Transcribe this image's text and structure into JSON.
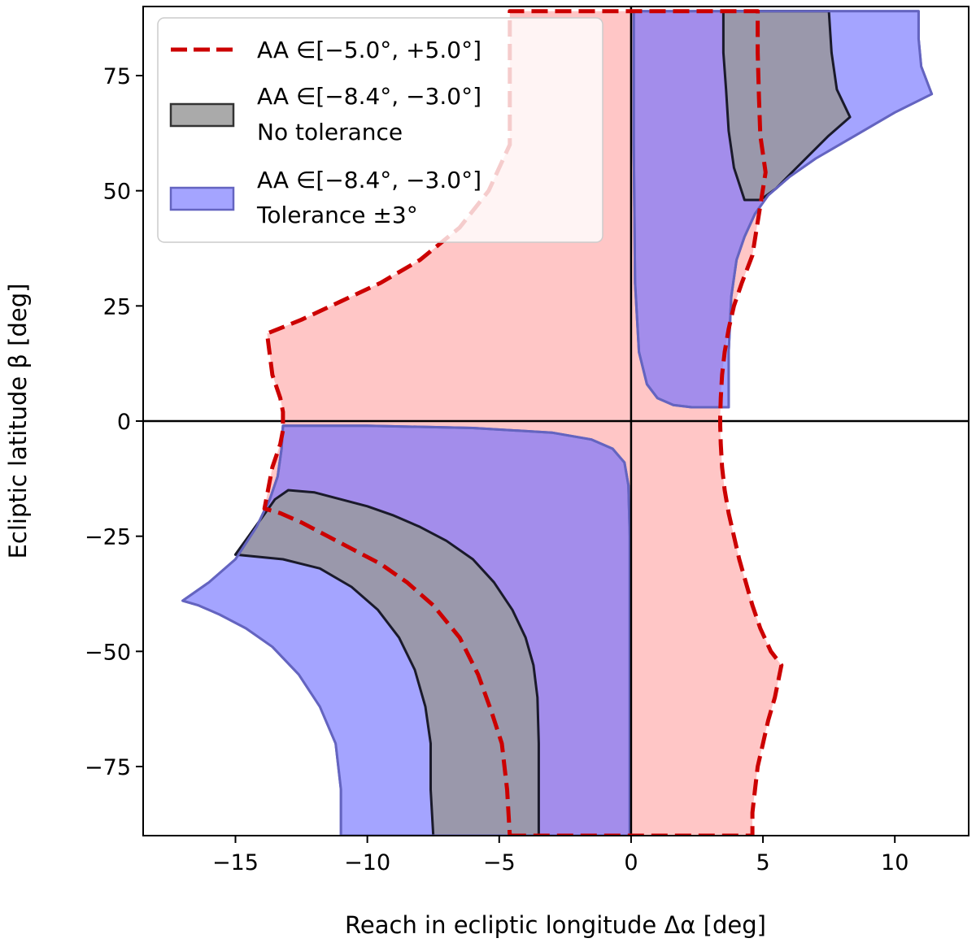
{
  "chart_data": {
    "type": "area",
    "title": "",
    "xlabel": "Reach in ecliptic longitude  Δα [deg]",
    "ylabel": "Ecliptic latitude  β [deg]",
    "xlim": [
      -18.5,
      12.8
    ],
    "ylim": [
      -90,
      90
    ],
    "x_ticks": [
      -15,
      -10,
      -5,
      0,
      5,
      10
    ],
    "y_ticks": [
      -75,
      -50,
      -25,
      0,
      25,
      50,
      75
    ],
    "x_tick_labels": [
      "−15",
      "−10",
      "−5",
      "0",
      "5",
      "10"
    ],
    "y_tick_labels": [
      "−75",
      "−50",
      "−25",
      "0",
      "25",
      "50",
      "75"
    ],
    "grid": false,
    "reference_lines": {
      "x": 0,
      "y": 0
    },
    "legend_position": "top-left",
    "colors": {
      "red_dashed": "#cc0000",
      "red_fill": "#ffc6c6",
      "gray_fill": "#9a98ab",
      "gray_edge": "#1a1a2a",
      "blue_fill": "#a4a4ff",
      "blue_edge": "#6464c0",
      "purple_overlap": "#a38deb"
    },
    "legend": [
      {
        "label": "AA ∈[−5.0°, +5.0°]",
        "style": "dashed-red"
      },
      {
        "label": "AA ∈[−8.4°, −3.0°]",
        "label2": "No tolerance",
        "style": "gray-fill"
      },
      {
        "label": "AA ∈[−8.4°, −3.0°]",
        "label2": "Tolerance ±3°",
        "style": "blue-fill"
      }
    ],
    "series": [
      {
        "name": "AA ∈[−5.0°, +5.0°]",
        "style": "dashed-red",
        "x": [
          -4.6,
          -4.6,
          -2.0,
          0.0,
          2.0,
          4.6,
          4.6,
          4.7,
          4.8,
          5.0,
          5.2,
          5.45,
          5.7,
          5.3,
          4.9,
          4.6,
          4.35,
          4.1,
          3.9,
          3.7,
          3.55,
          3.45,
          3.4,
          3.38,
          3.38,
          3.4,
          3.45,
          3.55,
          3.7,
          3.9,
          4.2,
          4.6,
          5.1,
          4.9,
          4.85,
          4.8,
          4.8,
          3.0,
          0.0,
          -2.0,
          -4.6,
          -4.6,
          -5.4,
          -6.5,
          -8.0,
          -9.5,
          -11.0,
          -12.5,
          -13.8,
          -13.6,
          -13.3,
          -13.2,
          -13.2,
          -13.3,
          -13.6,
          -13.9,
          -13.3,
          -12.5,
          -11.5,
          -10.5,
          -9.5,
          -8.5,
          -7.5,
          -6.5,
          -5.8,
          -5.3,
          -4.9,
          -4.7,
          -4.6
        ],
        "y": [
          -90,
          -90,
          -90,
          -90,
          -90,
          -90,
          -85,
          -80,
          -75,
          -70,
          -65,
          -60,
          -53,
          -50,
          -45,
          -40,
          -35,
          -30,
          -25,
          -20,
          -15,
          -10,
          -5,
          -1,
          1,
          5,
          10,
          15,
          20,
          25,
          30,
          36,
          54,
          62,
          70,
          80,
          89,
          89,
          89,
          89,
          89,
          60,
          50,
          42,
          35,
          30,
          26,
          22,
          19,
          10,
          5,
          2,
          -2,
          -5,
          -10,
          -19,
          -20,
          -22,
          -25,
          -28,
          -31,
          -35,
          -40,
          -47,
          -55,
          -63,
          -70,
          -80,
          -90
        ]
      },
      {
        "name": "AA ∈[−8.4°, −3.0°] No tolerance",
        "style": "gray-fill",
        "x": [
          -15.0,
          -14.5,
          -14.0,
          -13.5,
          -13.0,
          -12.0,
          -11.0,
          -10.0,
          -9.0,
          -8.0,
          -7.0,
          -6.0,
          -5.2,
          -4.5,
          -4.0,
          -3.7,
          -3.55,
          -3.5,
          -3.5,
          -7.5,
          -7.6,
          -7.6,
          -7.8,
          -8.2,
          -8.8,
          -9.6,
          -10.6,
          -11.8,
          -13.2,
          -15.0
        ],
        "y": [
          -29,
          -25,
          -21,
          -17,
          -15,
          -15.5,
          -17,
          -18.5,
          -20.5,
          -23,
          -26,
          -30,
          -35,
          -41,
          -47,
          -53,
          -60,
          -70,
          -90,
          -90,
          -80,
          -70,
          -62,
          -54,
          -47,
          -41,
          -36,
          -32,
          -30,
          -29
        ]
      },
      {
        "name": "AA ∈[−8.4°, −3.0°] No tolerance",
        "style": "gray-fill",
        "x": [
          3.5,
          7.5,
          7.6,
          7.8,
          8.3,
          7.5,
          6.8,
          6.1,
          5.5,
          4.9,
          4.3,
          3.9,
          3.7,
          3.6,
          3.5,
          3.5
        ],
        "y": [
          89,
          89,
          80,
          72,
          66,
          62,
          58,
          54,
          50.5,
          48,
          48,
          55,
          63,
          72,
          80,
          89
        ]
      },
      {
        "name": "AA ∈[−8.4°, −3.0°] Tolerance ±3°",
        "style": "blue-fill",
        "x": [
          -13.2,
          -10.0,
          -6.0,
          -3.0,
          -1.5,
          -0.7,
          -0.25,
          -0.1,
          -0.05,
          -0.05,
          -0.05,
          -11.0,
          -11.0,
          -11.2,
          -11.8,
          -12.6,
          -13.6,
          -14.6,
          -15.6,
          -16.4,
          -17.0,
          -16.0,
          -15.0,
          -14.2,
          -13.7,
          -13.4,
          -13.25,
          -13.2
        ],
        "y": [
          -1,
          -1,
          -1.5,
          -2.5,
          -4,
          -6,
          -9,
          -14,
          -25,
          -60,
          -90,
          -90,
          -80,
          -70,
          -62,
          -55,
          -49,
          -45,
          -42,
          -40,
          -39,
          -35,
          -30,
          -23,
          -17,
          -12,
          -6,
          -1
        ]
      },
      {
        "name": "AA ∈[−8.4°, −3.0°] Tolerance ±3°",
        "style": "blue-fill",
        "x": [
          0.1,
          0.1,
          0.15,
          0.3,
          0.6,
          1.0,
          1.6,
          2.3,
          3.0,
          3.7,
          3.7,
          3.8,
          4.0,
          4.3,
          4.7,
          5.2,
          6.0,
          7.0,
          8.5,
          10.0,
          11.4,
          11.0,
          10.9,
          10.9,
          0.1
        ],
        "y": [
          89,
          60,
          30,
          15,
          8,
          5,
          3.5,
          3,
          3,
          3,
          15,
          27,
          35,
          40,
          45,
          49,
          53,
          57,
          62,
          67,
          71,
          77,
          83,
          89,
          89
        ]
      }
    ]
  }
}
